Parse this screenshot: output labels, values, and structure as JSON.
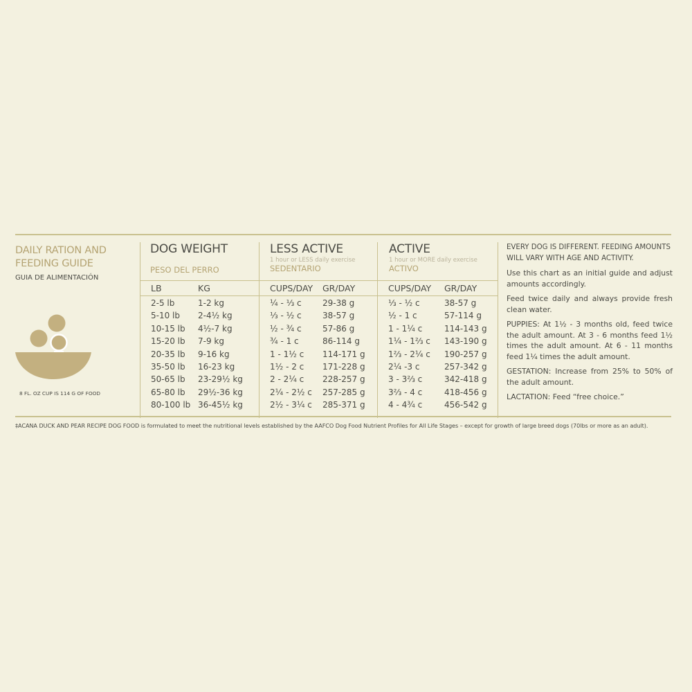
{
  "guide": {
    "title_line1": "DAILY RATION AND",
    "title_line2": "FEEDING GUIDE",
    "subtitle": "GUIA DE ALIMENTACIÓN",
    "cup_caption": "8 FL. OZ CUP IS 114 G OF FOOD"
  },
  "colors": {
    "background": "#f3f1e0",
    "accent_gold": "#b4a372",
    "rule": "#c8c08e",
    "bowl": "#c3b080",
    "text": "#4a4a44"
  },
  "icons": {
    "bowl": "food-bowl-icon"
  },
  "groups": {
    "weight": {
      "heading": "DOG WEIGHT",
      "sub": "PESO DEL PERRO",
      "col1": "LB",
      "col2": "KG"
    },
    "less_active": {
      "heading": "LESS ACTIVE",
      "note": "1 hour or LESS daily exercise",
      "sub": "SEDENTARIO",
      "col1": "CUPS/DAY",
      "col2": "GR/DAY"
    },
    "active": {
      "heading": "ACTIVE",
      "note": "1 hour or MORE daily exercise",
      "sub": "ACTIVO",
      "col1": "CUPS/DAY",
      "col2": "GR/DAY"
    }
  },
  "rows": [
    [
      "2-5 lb",
      "1-2 kg",
      "¼ - ⅓ c",
      "29-38 g",
      "⅓ - ½ c",
      "38-57 g"
    ],
    [
      "5-10 lb",
      "2-4½ kg",
      "⅓ - ½ c",
      "38-57 g",
      "½ - 1 c",
      "57-114 g"
    ],
    [
      "10-15 lb",
      "4½-7 kg",
      "½ - ¾ c",
      "57-86 g",
      "1 - 1¼ c",
      "114-143 g"
    ],
    [
      "15-20 lb",
      "7-9 kg",
      "¾ - 1 c",
      "86-114 g",
      "1¼ - 1⅔ c",
      "143-190 g"
    ],
    [
      "20-35 lb",
      "9-16 kg",
      "1 - 1½ c",
      "114-171 g",
      "1⅔ - 2¼ c",
      "190-257 g"
    ],
    [
      "35-50 lb",
      "16-23 kg",
      "1½ - 2 c",
      "171-228 g",
      "2¼ -3 c",
      "257-342 g"
    ],
    [
      "50-65 lb",
      "23-29½ kg",
      "2 - 2¼ c",
      "228-257 g",
      "3 - 3⅔ c",
      "342-418 g"
    ],
    [
      "65-80 lb",
      "29½-36 kg",
      "2¼ - 2½ c",
      "257-285 g",
      "3⅔ - 4 c",
      "418-456 g"
    ],
    [
      "80-100 lb",
      "36-45½ kg",
      "2½ - 3¼ c",
      "285-371 g",
      "4 - 4¾ c",
      "456-542 g"
    ]
  ],
  "notes": {
    "every_dog": "EVERY DOG IS DIFFERENT. FEEDING AMOUNTS WILL VARY WITH AGE AND ACTIVITY.",
    "use_chart": "Use this chart as an initial guide and adjust amounts accordingly.",
    "feed_twice": "Feed twice daily and always provide fresh clean water.",
    "puppies": "PUPPIES: At 1½ - 3 months old, feed twice the adult amount. At 3 - 6 months feed 1½ times the adult amount. At 6 - 11 months feed 1¼ times the adult amount.",
    "gestation": "GESTATION: Increase from 25% to 50% of the adult amount.",
    "lactation": "LACTATION: Feed “free choice.”"
  },
  "footnote": "‡ACANA DUCK AND PEAR RECIPE DOG FOOD is formulated to meet the nutritional levels established by the AAFCO Dog Food Nutrient Profiles for All Life Stages – except for growth of large breed dogs (70lbs or more as an adult)."
}
